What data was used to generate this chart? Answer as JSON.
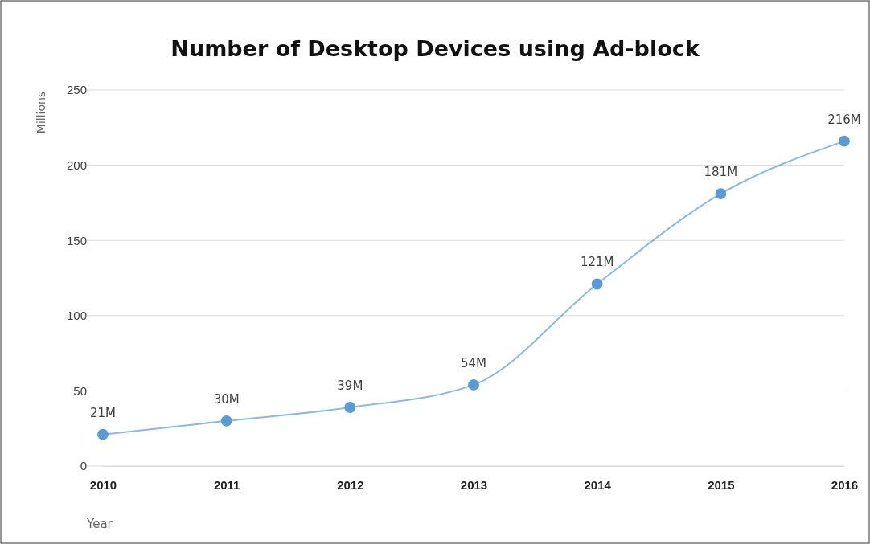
{
  "chart_data": {
    "type": "line",
    "title": "Number of Desktop Devices using Ad-block",
    "xlabel": "Year",
    "ylabel": "Millions",
    "categories": [
      "2010",
      "2011",
      "2012",
      "2013",
      "2014",
      "2015",
      "2016"
    ],
    "series": [
      {
        "color": "#5b9bd5",
        "values": [
          21,
          30,
          39,
          54,
          121,
          181,
          216
        ],
        "value_labels": [
          "21M",
          "30M",
          "39M",
          "54M",
          "121M",
          "181M",
          "216M"
        ]
      }
    ],
    "ylim": [
      0,
      250
    ],
    "yticks": [
      0,
      50,
      100,
      150,
      200,
      250
    ],
    "grid": "y",
    "marker": "circle",
    "line_style": "solid"
  }
}
